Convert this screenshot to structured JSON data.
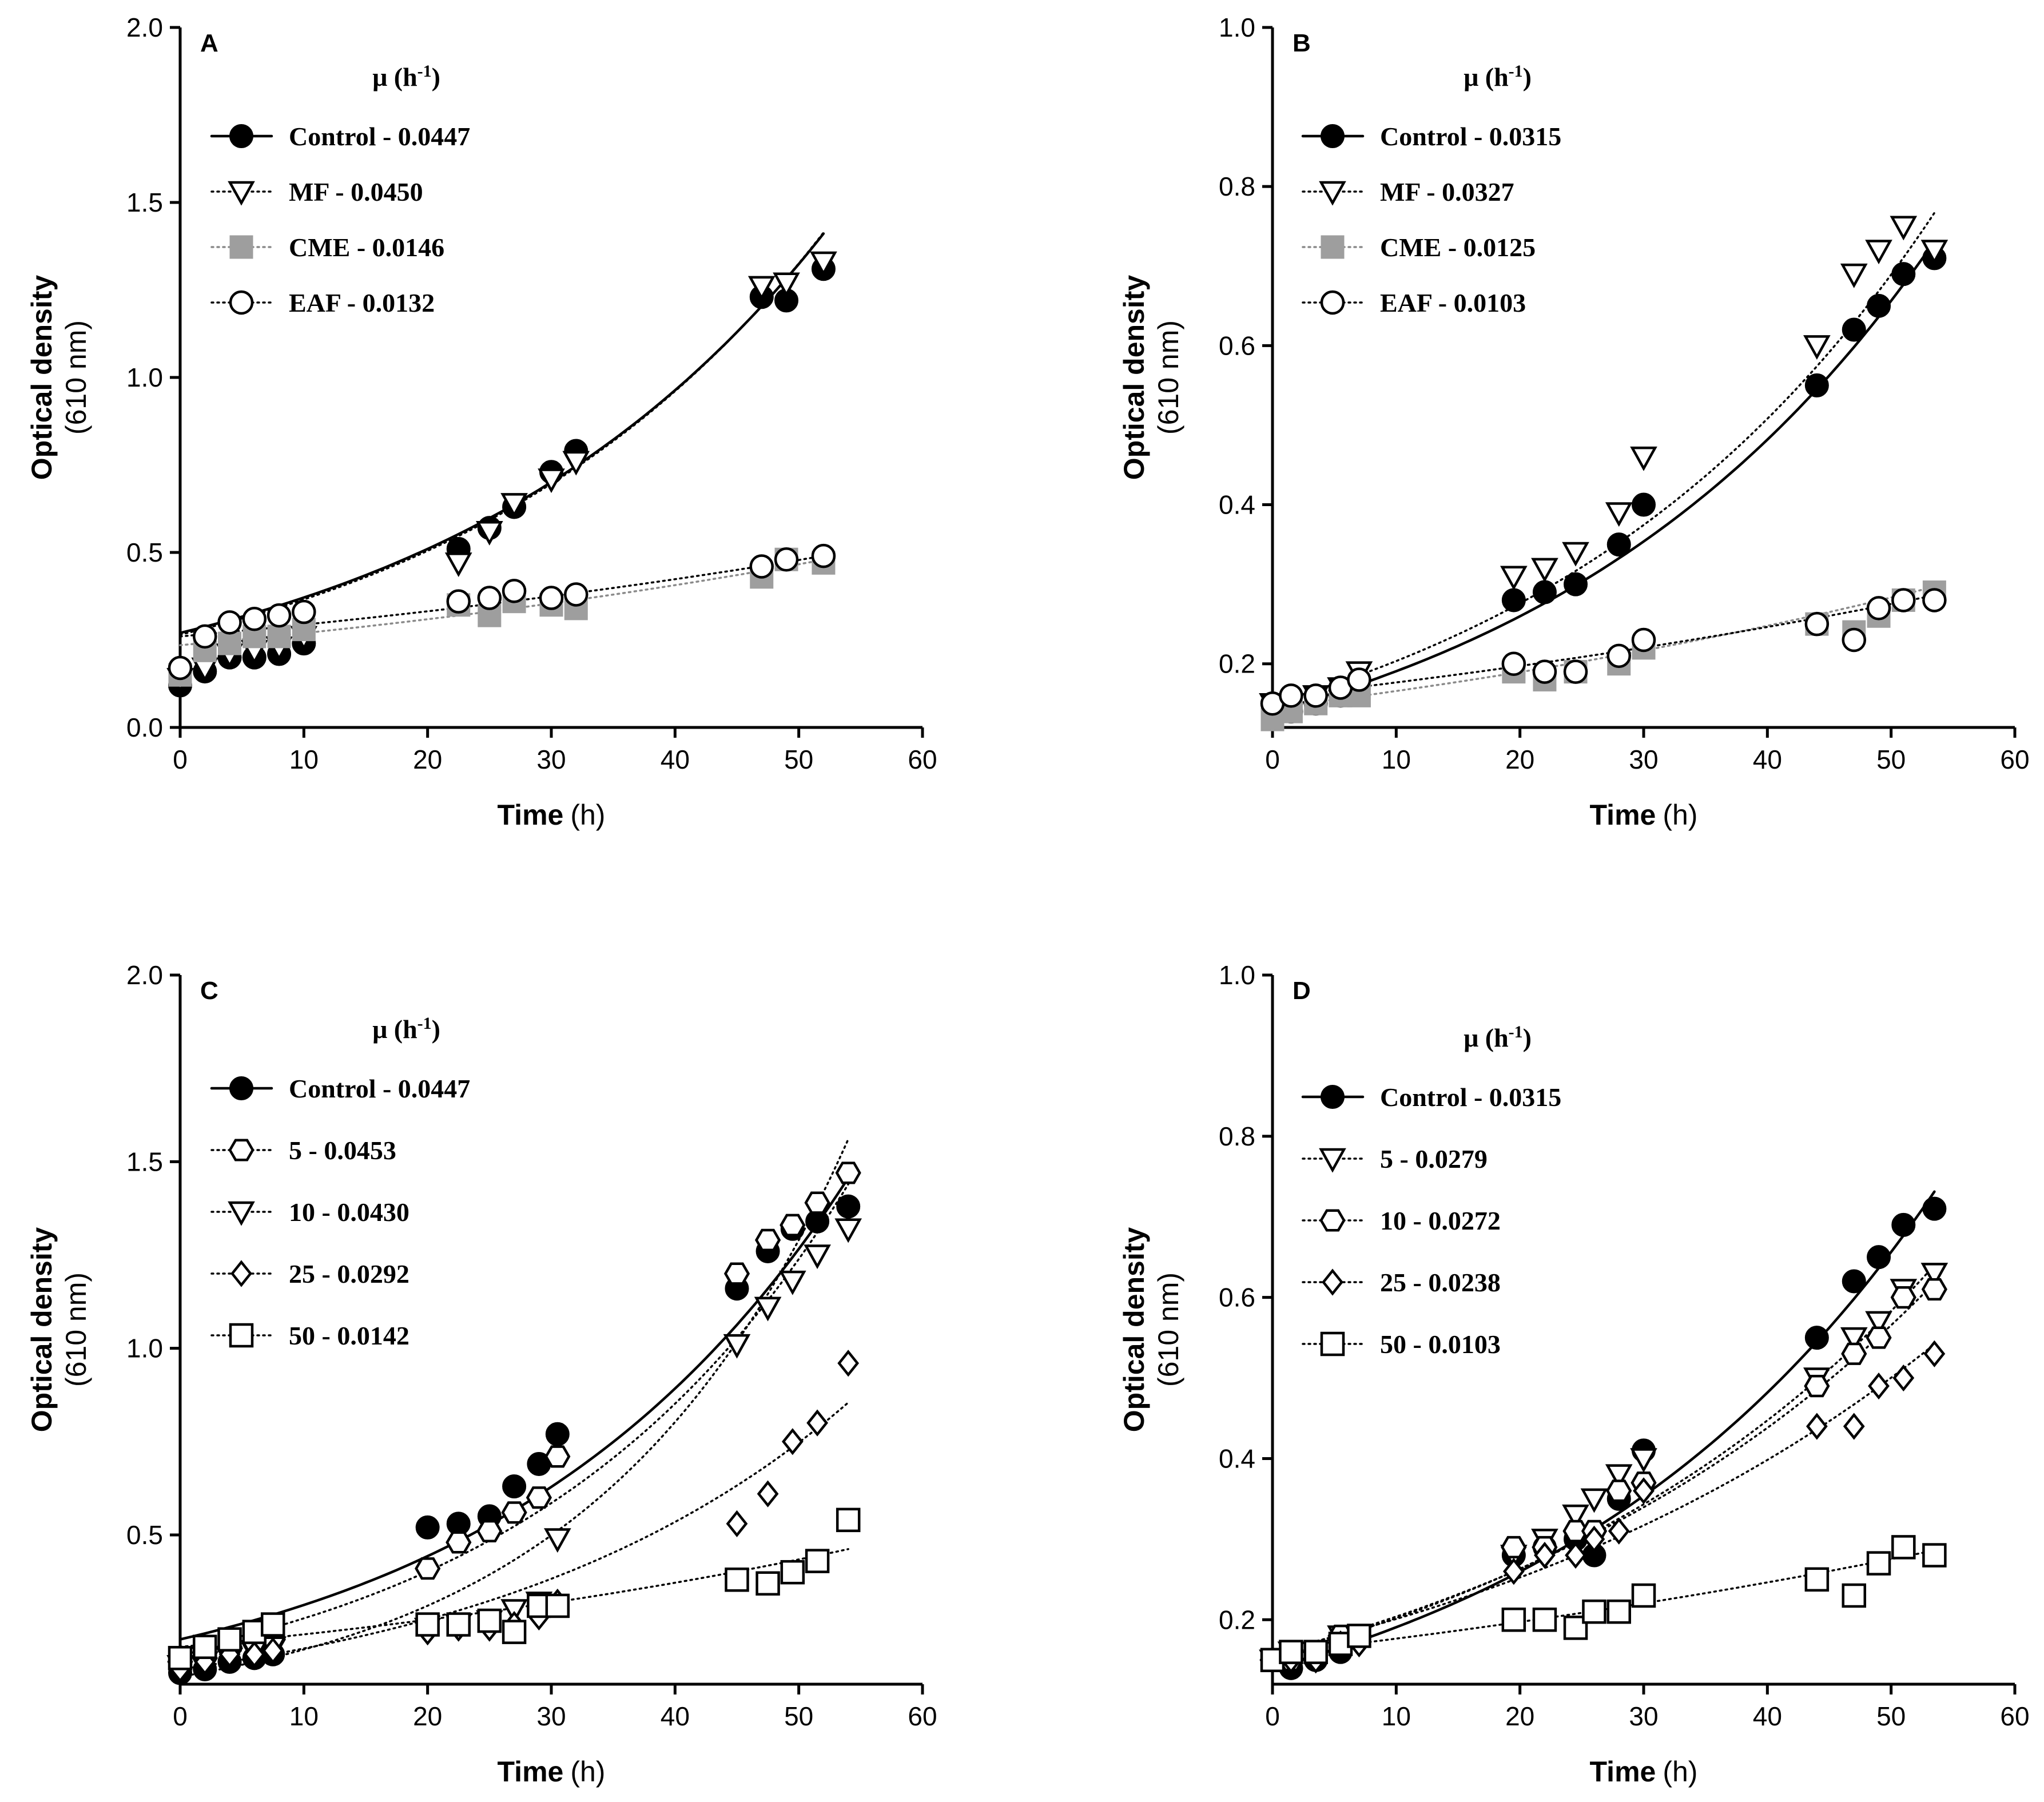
{
  "chart_data": [
    {
      "panel": "A",
      "type": "scatter",
      "xlabel": "Time",
      "xlabel_unit": "(h)",
      "ylabel": "Optical density",
      "ylabel_unit": "(610 nm)",
      "xlim": [
        0,
        60
      ],
      "ylim": [
        0,
        2.0
      ],
      "xticks": [
        0,
        10,
        20,
        30,
        40,
        50,
        60
      ],
      "yticks": [
        0.0,
        0.5,
        1.0,
        1.5,
        2.0
      ],
      "ytick_labels": [
        "0.0",
        "0.5",
        "1.0",
        "1.5",
        "2.0"
      ],
      "legend_title_prefix": "μ (h",
      "legend_title_sup": "-1",
      "legend_title_suffix": ")",
      "series": [
        {
          "name": "Control - 0.0447",
          "marker": "circle-filled",
          "color": "#000000",
          "line": "solid",
          "fit": {
            "a": 0.27,
            "rate": 0.0318
          },
          "x": [
            0,
            2,
            4,
            6,
            8,
            10,
            22.5,
            25,
            27,
            30,
            32,
            47,
            49,
            52
          ],
          "y": [
            0.12,
            0.16,
            0.2,
            0.2,
            0.21,
            0.24,
            0.51,
            0.57,
            0.63,
            0.73,
            0.79,
            1.23,
            1.22,
            1.31
          ]
        },
        {
          "name": "MF - 0.0450",
          "marker": "triangle-down-open",
          "color": "#000000",
          "line": "dotted",
          "fit": {
            "a": 0.265,
            "rate": 0.0322
          },
          "x": [
            0,
            2,
            4,
            6,
            8,
            10,
            22.5,
            25,
            27,
            30,
            32,
            47,
            49,
            52
          ],
          "y": [
            0.14,
            0.17,
            0.21,
            0.22,
            0.23,
            0.26,
            0.47,
            0.56,
            0.64,
            0.71,
            0.76,
            1.26,
            1.27,
            1.33
          ]
        },
        {
          "name": "CME - 0.0146",
          "marker": "square-filled",
          "color": "#9e9e9e",
          "line": "dotted",
          "fit": {
            "a": 0.235,
            "rate": 0.0137
          },
          "x": [
            0,
            2,
            4,
            6,
            8,
            10,
            22.5,
            25,
            27,
            30,
            32,
            47,
            49,
            52
          ],
          "y": [
            0.15,
            0.22,
            0.24,
            0.26,
            0.26,
            0.28,
            0.35,
            0.32,
            0.36,
            0.35,
            0.34,
            0.43,
            0.48,
            0.47
          ]
        },
        {
          "name": "EAF - 0.0132",
          "marker": "circle-open",
          "color": "#000000",
          "line": "dotted",
          "fit": {
            "a": 0.26,
            "rate": 0.0122
          },
          "x": [
            0,
            2,
            4,
            6,
            8,
            10,
            22.5,
            25,
            27,
            30,
            32,
            47,
            49,
            52
          ],
          "y": [
            0.17,
            0.26,
            0.3,
            0.31,
            0.32,
            0.33,
            0.36,
            0.37,
            0.39,
            0.37,
            0.38,
            0.46,
            0.48,
            0.49
          ]
        }
      ]
    },
    {
      "panel": "B",
      "type": "scatter",
      "xlabel": "Time",
      "xlabel_unit": "(h)",
      "ylabel": "Optical density",
      "ylabel_unit": "(610 nm)",
      "xlim": [
        0,
        60
      ],
      "ylim": [
        0.12,
        1.0
      ],
      "xticks": [
        0,
        10,
        20,
        30,
        40,
        50,
        60
      ],
      "yticks": [
        0.2,
        0.4,
        0.6,
        0.8,
        1.0
      ],
      "ytick_labels": [
        "0.2",
        "0.4",
        "0.6",
        "0.8",
        "1.0"
      ],
      "legend_title_prefix": "μ (h",
      "legend_title_sup": "-1",
      "legend_title_suffix": ")",
      "series": [
        {
          "name": "Control - 0.0315",
          "marker": "circle-filled",
          "color": "#000000",
          "line": "solid",
          "fit": {
            "a": 0.14,
            "rate": 0.0309
          },
          "x": [
            0,
            1.5,
            3.5,
            5.5,
            7,
            19.5,
            22,
            24.5,
            28,
            30,
            44,
            47,
            49,
            51,
            53.5
          ],
          "y": [
            0.15,
            0.14,
            0.15,
            0.16,
            0.18,
            0.28,
            0.29,
            0.3,
            0.35,
            0.4,
            0.55,
            0.62,
            0.65,
            0.69,
            0.71
          ]
        },
        {
          "name": "MF - 0.0327",
          "marker": "triangle-down-open",
          "color": "#000000",
          "line": "dotted",
          "fit": {
            "a": 0.15,
            "rate": 0.0305
          },
          "x": [
            0,
            1.5,
            3.5,
            5.5,
            7,
            19.5,
            22,
            24.5,
            28,
            30,
            44,
            47,
            49,
            51,
            53.5
          ],
          "y": [
            0.15,
            0.15,
            0.16,
            0.17,
            0.19,
            0.31,
            0.32,
            0.34,
            0.39,
            0.46,
            0.6,
            0.69,
            0.72,
            0.75,
            0.72
          ]
        },
        {
          "name": "CME - 0.0125",
          "marker": "square-filled",
          "color": "#9e9e9e",
          "line": "dotted",
          "fit": {
            "a": 0.145,
            "rate": 0.0134
          },
          "x": [
            0,
            1.5,
            3.5,
            5.5,
            7,
            19.5,
            22,
            24.5,
            28,
            30,
            44,
            47,
            49,
            51,
            53.5
          ],
          "y": [
            0.13,
            0.14,
            0.15,
            0.16,
            0.16,
            0.19,
            0.18,
            0.19,
            0.2,
            0.22,
            0.25,
            0.24,
            0.26,
            0.28,
            0.29
          ]
        },
        {
          "name": "EAF - 0.0103",
          "marker": "circle-open",
          "color": "#000000",
          "line": "dotted",
          "fit": {
            "a": 0.158,
            "rate": 0.0111
          },
          "x": [
            0,
            1.5,
            3.5,
            5.5,
            7,
            19.5,
            22,
            24.5,
            28,
            30,
            44,
            47,
            49,
            51,
            53.5
          ],
          "y": [
            0.15,
            0.16,
            0.16,
            0.17,
            0.18,
            0.2,
            0.19,
            0.19,
            0.21,
            0.23,
            0.25,
            0.23,
            0.27,
            0.28,
            0.28
          ]
        }
      ]
    },
    {
      "panel": "C",
      "type": "scatter",
      "xlabel": "Time",
      "xlabel_unit": "(h)",
      "ylabel": "Optical density",
      "ylabel_unit": "(610 nm)",
      "xlim": [
        0,
        60
      ],
      "ylim": [
        0.1,
        2.0
      ],
      "xticks": [
        0,
        10,
        20,
        30,
        40,
        50,
        60
      ],
      "yticks": [
        0.5,
        1.0,
        1.5,
        2.0
      ],
      "ytick_labels": [
        "0.5",
        "1.0",
        "1.5",
        "2.0"
      ],
      "legend_title_prefix": "μ (h",
      "legend_title_sup": "-1",
      "legend_title_suffix": ")",
      "series": [
        {
          "name": "Control - 0.0447",
          "marker": "circle-filled",
          "color": "#000000",
          "line": "solid",
          "fit": {
            "a": 0.22,
            "rate": 0.035
          },
          "x": [
            0,
            2,
            4,
            6,
            7.5,
            20,
            22.5,
            25,
            27,
            29,
            30.5,
            45,
            47.5,
            49.5,
            51.5,
            54
          ],
          "y": [
            0.13,
            0.14,
            0.16,
            0.17,
            0.18,
            0.52,
            0.53,
            0.55,
            0.63,
            0.69,
            0.77,
            1.16,
            1.26,
            1.32,
            1.34,
            1.38
          ]
        },
        {
          "name": "5 - 0.0453",
          "marker": "hexagon-open",
          "color": "#000000",
          "line": "dotted",
          "fit": {
            "a": 0.19,
            "rate": 0.0375
          },
          "x": [
            0,
            2,
            4,
            6,
            7.5,
            20,
            22.5,
            25,
            27,
            29,
            30.5,
            45,
            47.5,
            49.5,
            51.5,
            54
          ],
          "y": [
            0.16,
            0.17,
            0.2,
            0.21,
            0.22,
            0.41,
            0.48,
            0.51,
            0.56,
            0.6,
            0.71,
            1.2,
            1.29,
            1.33,
            1.39,
            1.47
          ]
        },
        {
          "name": "10 - 0.0430",
          "marker": "triangle-down-open",
          "color": "#000000",
          "line": "dotted",
          "fit": {
            "a": 0.12,
            "rate": 0.0475
          },
          "x": [
            0,
            2,
            4,
            6,
            7.5,
            20,
            22.5,
            25,
            27,
            29,
            30.5,
            45,
            47.5,
            49.5,
            51.5,
            54
          ],
          "y": [
            0.15,
            0.16,
            0.17,
            0.19,
            0.2,
            0.25,
            0.26,
            0.27,
            0.3,
            0.32,
            0.49,
            1.01,
            1.11,
            1.18,
            1.25,
            1.32
          ]
        },
        {
          "name": "25 - 0.0292",
          "marker": "diamond-open",
          "color": "#000000",
          "line": "dotted",
          "fit": {
            "a": 0.14,
            "rate": 0.0335
          },
          "x": [
            0,
            2,
            4,
            6,
            7.5,
            20,
            22.5,
            25,
            27,
            29,
            30.5,
            45,
            47.5,
            49.5,
            51.5,
            54
          ],
          "y": [
            0.14,
            0.16,
            0.18,
            0.18,
            0.19,
            0.24,
            0.25,
            0.25,
            0.26,
            0.28,
            0.32,
            0.53,
            0.61,
            0.75,
            0.8,
            0.96
          ]
        },
        {
          "name": "50 - 0.0142",
          "marker": "square-open",
          "color": "#000000",
          "line": "dotted",
          "fit": {
            "a": 0.2,
            "rate": 0.0155
          },
          "x": [
            0,
            2,
            4,
            6,
            7.5,
            20,
            22.5,
            25,
            27,
            29,
            30.5,
            45,
            47.5,
            49.5,
            51.5,
            54
          ],
          "y": [
            0.17,
            0.2,
            0.22,
            0.24,
            0.26,
            0.26,
            0.26,
            0.27,
            0.24,
            0.31,
            0.31,
            0.38,
            0.37,
            0.4,
            0.43,
            0.54
          ]
        }
      ]
    },
    {
      "panel": "D",
      "type": "scatter",
      "xlabel": "Time",
      "xlabel_unit": "(h)",
      "ylabel": "Optical density",
      "ylabel_unit": "(610 nm)",
      "xlim": [
        0,
        60
      ],
      "ylim": [
        0.12,
        1.0
      ],
      "xticks": [
        0,
        10,
        20,
        30,
        40,
        50,
        60
      ],
      "yticks": [
        0.2,
        0.4,
        0.6,
        0.8,
        1.0
      ],
      "ytick_labels": [
        "0.2",
        "0.4",
        "0.6",
        "0.8",
        "1.0"
      ],
      "legend_title_prefix": "μ (h",
      "legend_title_sup": "-1",
      "legend_title_suffix": ")",
      "series": [
        {
          "name": "Control - 0.0315",
          "marker": "circle-filled",
          "color": "#000000",
          "line": "solid",
          "fit": {
            "a": 0.14,
            "rate": 0.0309
          },
          "x": [
            0,
            1.5,
            3.5,
            5.5,
            7,
            19.5,
            22,
            24.5,
            26,
            28,
            30,
            44,
            47,
            49,
            51,
            53.5
          ],
          "y": [
            0.15,
            0.14,
            0.15,
            0.16,
            0.18,
            0.28,
            0.29,
            0.3,
            0.28,
            0.35,
            0.41,
            0.55,
            0.62,
            0.65,
            0.69,
            0.71
          ]
        },
        {
          "name": "5 - 0.0279",
          "marker": "triangle-down-open",
          "color": "#000000",
          "line": "dotted",
          "fit": {
            "a": 0.155,
            "rate": 0.0265
          },
          "x": [
            0,
            1.5,
            3.5,
            5.5,
            7,
            19.5,
            22,
            24.5,
            26,
            28,
            30,
            44,
            47,
            49,
            51,
            53.5
          ],
          "y": [
            0.15,
            0.16,
            0.16,
            0.18,
            0.18,
            0.28,
            0.3,
            0.33,
            0.35,
            0.38,
            0.4,
            0.5,
            0.55,
            0.57,
            0.61,
            0.63
          ]
        },
        {
          "name": "10 - 0.0272",
          "marker": "hexagon-open",
          "color": "#000000",
          "line": "dotted",
          "fit": {
            "a": 0.158,
            "rate": 0.0255
          },
          "x": [
            0,
            1.5,
            3.5,
            5.5,
            7,
            19.5,
            22,
            24.5,
            26,
            28,
            30,
            44,
            47,
            49,
            51,
            53.5
          ],
          "y": [
            0.15,
            0.15,
            0.16,
            0.18,
            0.18,
            0.29,
            0.29,
            0.31,
            0.31,
            0.36,
            0.37,
            0.49,
            0.53,
            0.55,
            0.6,
            0.61
          ]
        },
        {
          "name": "25 - 0.0238",
          "marker": "diamond-open",
          "color": "#000000",
          "line": "dotted",
          "fit": {
            "a": 0.16,
            "rate": 0.0228
          },
          "x": [
            0,
            1.5,
            3.5,
            5.5,
            7,
            19.5,
            22,
            24.5,
            26,
            28,
            30,
            44,
            47,
            49,
            51,
            53.5
          ],
          "y": [
            0.15,
            0.15,
            0.15,
            0.17,
            0.17,
            0.26,
            0.28,
            0.28,
            0.3,
            0.31,
            0.36,
            0.44,
            0.44,
            0.49,
            0.5,
            0.53
          ]
        },
        {
          "name": "50 - 0.0103",
          "marker": "square-open",
          "color": "#000000",
          "line": "dotted",
          "fit": {
            "a": 0.158,
            "rate": 0.0111
          },
          "x": [
            0,
            1.5,
            3.5,
            5.5,
            7,
            19.5,
            22,
            24.5,
            26,
            28,
            30,
            44,
            47,
            49,
            51,
            53.5
          ],
          "y": [
            0.15,
            0.16,
            0.16,
            0.17,
            0.18,
            0.2,
            0.2,
            0.19,
            0.21,
            0.21,
            0.23,
            0.25,
            0.23,
            0.27,
            0.29,
            0.28
          ]
        }
      ]
    }
  ]
}
